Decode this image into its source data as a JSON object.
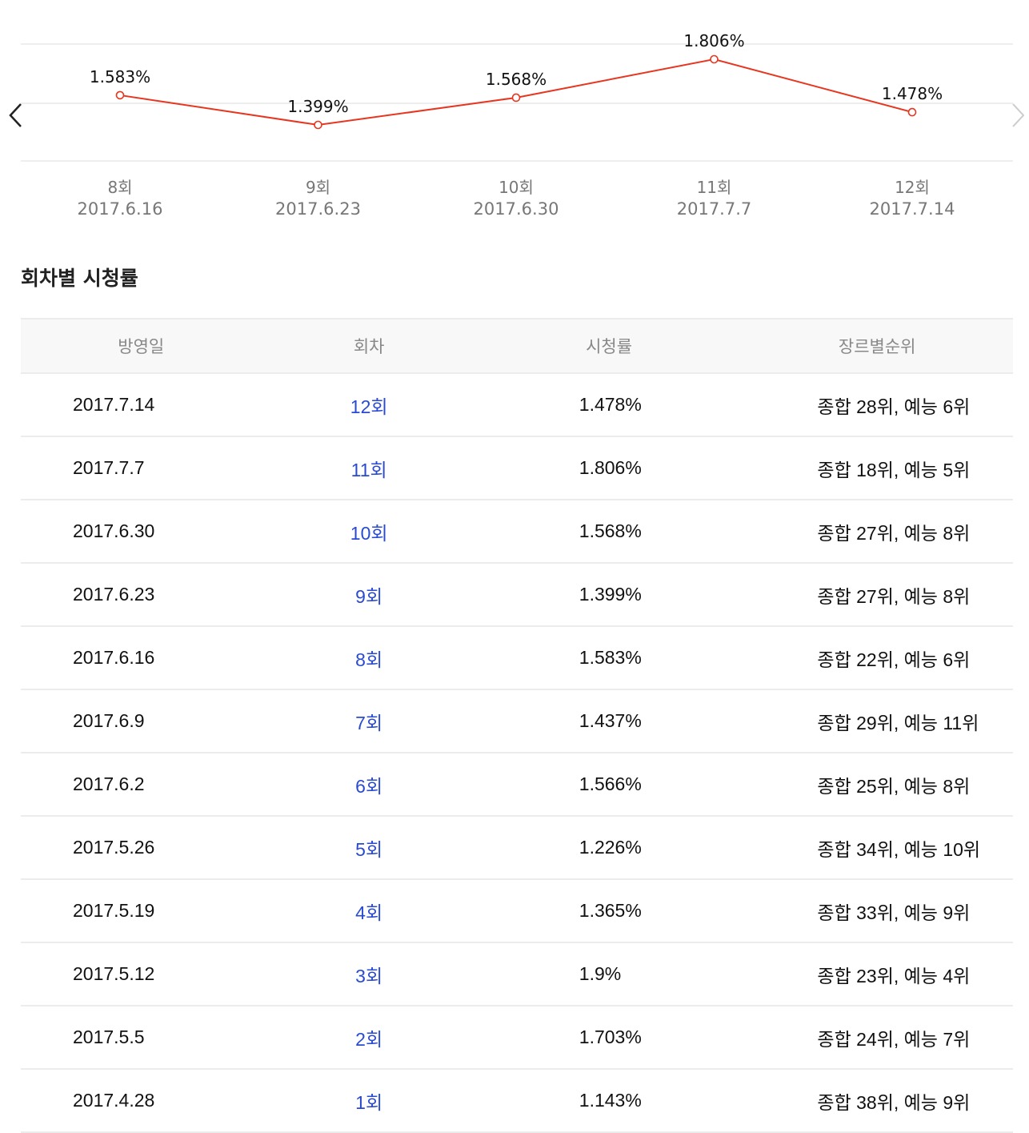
{
  "chart_data": {
    "type": "line",
    "categories": [
      "8회",
      "9회",
      "10회",
      "11회",
      "12회"
    ],
    "dates": [
      "2017.6.16",
      "2017.6.23",
      "2017.6.30",
      "2017.7.7",
      "2017.7.14"
    ],
    "values": [
      1.583,
      1.399,
      1.568,
      1.806,
      1.478
    ],
    "labels": [
      "1.583%",
      "1.399%",
      "1.568%",
      "1.806%",
      "1.478%"
    ],
    "series_color": "#e8351f",
    "grid": true
  },
  "section_title": "회차별 시청률",
  "table": {
    "headers": [
      "방영일",
      "회차",
      "시청률",
      "장르별순위"
    ],
    "rows": [
      [
        "2017.7.14",
        "12회",
        "1.478%",
        "종합 28위, 예능 6위"
      ],
      [
        "2017.7.7",
        "11회",
        "1.806%",
        "종합 18위, 예능 5위"
      ],
      [
        "2017.6.30",
        "10회",
        "1.568%",
        "종합 27위, 예능 8위"
      ],
      [
        "2017.6.23",
        "9회",
        "1.399%",
        "종합 27위, 예능 8위"
      ],
      [
        "2017.6.16",
        "8회",
        "1.583%",
        "종합 22위, 예능 6위"
      ],
      [
        "2017.6.9",
        "7회",
        "1.437%",
        "종합 29위, 예능 11위"
      ],
      [
        "2017.6.2",
        "6회",
        "1.566%",
        "종합 25위, 예능 8위"
      ],
      [
        "2017.5.26",
        "5회",
        "1.226%",
        "종합 34위, 예능 10위"
      ],
      [
        "2017.5.19",
        "4회",
        "1.365%",
        "종합 33위, 예능 9위"
      ],
      [
        "2017.5.12",
        "3회",
        "1.9%",
        "종합 23위, 예능 4위"
      ],
      [
        "2017.5.5",
        "2회",
        "1.703%",
        "종합 24위, 예능 7위"
      ],
      [
        "2017.4.28",
        "1회",
        "1.143%",
        "종합 38위, 예능 9위"
      ]
    ]
  }
}
